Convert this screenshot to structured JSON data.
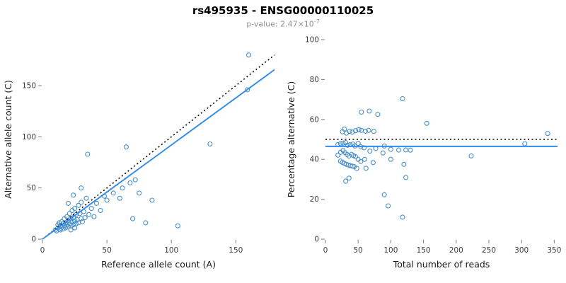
{
  "header": {
    "title": "rs495935 - ENSG00000110025",
    "subtitle_prefix": "p-value: ",
    "subtitle_base": "2.47×10",
    "subtitle_exponent": "-7"
  },
  "colors": {
    "point": "#4a90c8",
    "fit_line": "#2e8aee",
    "identity_line": "#000000",
    "tick": "#7a7a7a",
    "tick_label": "#3c3c3c",
    "axis_label": "#1a1a1a",
    "subtitle_text": "#8f8f8f"
  },
  "chart_data": [
    {
      "type": "scatter",
      "title": "",
      "xlabel": "Reference allele count (A)",
      "ylabel": "Alternative allele count (C)",
      "xlim": [
        0,
        180
      ],
      "ylim": [
        0,
        195
      ],
      "xticks": [
        0,
        50,
        100,
        150
      ],
      "yticks": [
        0,
        50,
        100,
        150
      ],
      "x_from": "ref",
      "y_from": "alt",
      "grid": false,
      "legend": "none",
      "lines": [
        {
          "name": "identity-line",
          "style": "dotted",
          "color": "#000000",
          "slope": 1,
          "intercept": 0
        },
        {
          "name": "fit-line",
          "style": "solid",
          "color": "#2e8aee",
          "slope": 0.92,
          "intercept": 0
        }
      ]
    },
    {
      "type": "scatter",
      "title": "",
      "xlabel": "Total number of reads",
      "ylabel": "Percentage alternative (C)",
      "xlim": [
        0,
        355
      ],
      "ylim": [
        0,
        100
      ],
      "xticks": [
        0,
        50,
        100,
        150,
        200,
        250,
        300,
        350
      ],
      "yticks": [
        0,
        20,
        40,
        60,
        80,
        100
      ],
      "x_from": "total",
      "y_from": "pct",
      "grid": false,
      "legend": "none",
      "lines": [
        {
          "name": "expected-50pct-line",
          "style": "dotted",
          "color": "#000000",
          "hline": 50
        },
        {
          "name": "fit-line",
          "style": "solid",
          "color": "#2e8aee",
          "hline": 46.5
        }
      ]
    }
  ],
  "points_ref_alt": [
    [
      10,
      9
    ],
    [
      11,
      8
    ],
    [
      12,
      11
    ],
    [
      12,
      14
    ],
    [
      13,
      10
    ],
    [
      13,
      16
    ],
    [
      14,
      9
    ],
    [
      14,
      13
    ],
    [
      15,
      12
    ],
    [
      15,
      17
    ],
    [
      16,
      10
    ],
    [
      16,
      15
    ],
    [
      17,
      13
    ],
    [
      17,
      20
    ],
    [
      18,
      11
    ],
    [
      18,
      16
    ],
    [
      19,
      14
    ],
    [
      19,
      22
    ],
    [
      20,
      12
    ],
    [
      20,
      18
    ],
    [
      20,
      35
    ],
    [
      21,
      15
    ],
    [
      21,
      25
    ],
    [
      22,
      9
    ],
    [
      22,
      13
    ],
    [
      22,
      20
    ],
    [
      23,
      17
    ],
    [
      23,
      28
    ],
    [
      24,
      14
    ],
    [
      24,
      21
    ],
    [
      24,
      43
    ],
    [
      25,
      11
    ],
    [
      25,
      18
    ],
    [
      25,
      30
    ],
    [
      26,
      15
    ],
    [
      26,
      24
    ],
    [
      27,
      19
    ],
    [
      28,
      16
    ],
    [
      28,
      33
    ],
    [
      29,
      25
    ],
    [
      30,
      20
    ],
    [
      30,
      36
    ],
    [
      30,
      50
    ],
    [
      31,
      17
    ],
    [
      32,
      27
    ],
    [
      33,
      21
    ],
    [
      34,
      40
    ],
    [
      35,
      83
    ],
    [
      36,
      24
    ],
    [
      38,
      30
    ],
    [
      40,
      22
    ],
    [
      42,
      35
    ],
    [
      45,
      28
    ],
    [
      48,
      42
    ],
    [
      50,
      38
    ],
    [
      55,
      45
    ],
    [
      60,
      40
    ],
    [
      62,
      50
    ],
    [
      65,
      90
    ],
    [
      68,
      55
    ],
    [
      70,
      20
    ],
    [
      72,
      58
    ],
    [
      75,
      45
    ],
    [
      80,
      16
    ],
    [
      85,
      38
    ],
    [
      105,
      13
    ],
    [
      130,
      93
    ],
    [
      159,
      146
    ],
    [
      160,
      180
    ]
  ]
}
